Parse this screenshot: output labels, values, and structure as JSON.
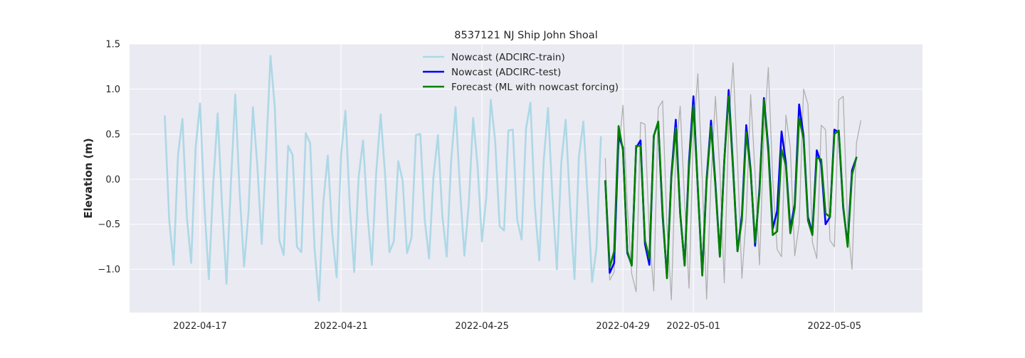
{
  "chart_data": {
    "type": "line",
    "title": "8537121 NJ Ship John Shoal",
    "xlabel": "",
    "ylabel": "Elevation (m)",
    "x_unit": "date (day of April/May 2022)",
    "xlim": [
      "2022-04-15T00:00",
      "2022-05-07T12:00"
    ],
    "ylim": [
      -1.48,
      1.5
    ],
    "yticks": [
      -1.0,
      -0.5,
      0.0,
      0.5,
      1.0,
      1.5
    ],
    "ytick_labels": [
      "−1.0",
      "−0.5",
      "0.0",
      "0.5",
      "1.0",
      "1.5"
    ],
    "xticks": [
      "2022-04-17",
      "2022-04-21",
      "2022-04-25",
      "2022-04-29",
      "2022-05-01",
      "2022-05-05"
    ],
    "xtick_labels": [
      "2022-04-17",
      "2022-04-21",
      "2022-04-25",
      "2022-04-29",
      "2022-05-01",
      "2022-05-05"
    ],
    "grid": true,
    "legend_position": "top-center",
    "background": "#eaeaf2",
    "series": [
      {
        "name": "Nowcast (ADCIRC-train)",
        "color": "#add8e6",
        "x": [
          "2022-04-16T00:00",
          "2022-04-16T03:00",
          "2022-04-16T06:00",
          "2022-04-16T09:00",
          "2022-04-16T12:00",
          "2022-04-16T15:00",
          "2022-04-16T18:00",
          "2022-04-16T21:00",
          "2022-04-17T00:00",
          "2022-04-17T03:00",
          "2022-04-17T06:00",
          "2022-04-17T09:00",
          "2022-04-17T12:00",
          "2022-04-17T15:00",
          "2022-04-17T18:00",
          "2022-04-17T21:00",
          "2022-04-18T00:00",
          "2022-04-18T03:00",
          "2022-04-18T06:00",
          "2022-04-18T09:00",
          "2022-04-18T12:00",
          "2022-04-18T15:00",
          "2022-04-18T18:00",
          "2022-04-18T21:00",
          "2022-04-19T00:00",
          "2022-04-19T03:00",
          "2022-04-19T06:00",
          "2022-04-19T09:00",
          "2022-04-19T12:00",
          "2022-04-19T15:00",
          "2022-04-19T18:00",
          "2022-04-19T21:00",
          "2022-04-20T00:00",
          "2022-04-20T03:00",
          "2022-04-20T06:00",
          "2022-04-20T09:00",
          "2022-04-20T12:00",
          "2022-04-20T15:00",
          "2022-04-20T18:00",
          "2022-04-20T21:00",
          "2022-04-21T00:00",
          "2022-04-21T03:00",
          "2022-04-21T06:00",
          "2022-04-21T09:00",
          "2022-04-21T12:00",
          "2022-04-21T15:00",
          "2022-04-21T18:00",
          "2022-04-21T21:00",
          "2022-04-22T00:00",
          "2022-04-22T03:00",
          "2022-04-22T06:00",
          "2022-04-22T09:00",
          "2022-04-22T12:00",
          "2022-04-22T15:00",
          "2022-04-22T18:00",
          "2022-04-22T21:00",
          "2022-04-23T00:00",
          "2022-04-23T03:00",
          "2022-04-23T06:00",
          "2022-04-23T09:00",
          "2022-04-23T12:00",
          "2022-04-23T15:00",
          "2022-04-23T18:00",
          "2022-04-23T21:00",
          "2022-04-24T00:00",
          "2022-04-24T03:00",
          "2022-04-24T06:00",
          "2022-04-24T09:00",
          "2022-04-24T12:00",
          "2022-04-24T15:00",
          "2022-04-24T18:00",
          "2022-04-24T21:00",
          "2022-04-25T00:00",
          "2022-04-25T03:00",
          "2022-04-25T06:00",
          "2022-04-25T09:00",
          "2022-04-25T12:00",
          "2022-04-25T15:00",
          "2022-04-25T18:00",
          "2022-04-25T21:00",
          "2022-04-26T00:00",
          "2022-04-26T03:00",
          "2022-04-26T06:00",
          "2022-04-26T09:00",
          "2022-04-26T12:00",
          "2022-04-26T15:00",
          "2022-04-26T18:00",
          "2022-04-26T21:00",
          "2022-04-27T00:00",
          "2022-04-27T03:00",
          "2022-04-27T06:00",
          "2022-04-27T09:00",
          "2022-04-27T12:00",
          "2022-04-27T15:00",
          "2022-04-27T18:00",
          "2022-04-27T21:00",
          "2022-04-28T00:00",
          "2022-04-28T03:00",
          "2022-04-28T06:00",
          "2022-04-28T09:00",
          "2022-04-28T12:00",
          "2022-04-28T15:00"
        ],
        "y": [
          0.7,
          -0.45,
          -0.95,
          0.27,
          0.67,
          -0.42,
          -0.93,
          0.35,
          0.84,
          -0.3,
          -1.11,
          -0.05,
          0.73,
          -0.3,
          -1.16,
          -0.06,
          0.94,
          -0.15,
          -0.97,
          -0.37,
          0.8,
          0.15,
          -0.72,
          0.3,
          1.37,
          0.78,
          -0.68,
          -0.84,
          0.37,
          0.27,
          -0.75,
          -0.81,
          0.51,
          0.4,
          -0.77,
          -1.35,
          -0.25,
          0.26,
          -0.59,
          -1.09,
          0.26,
          0.76,
          -0.3,
          -1.03,
          0.02,
          0.43,
          -0.38,
          -0.95,
          0.08,
          0.72,
          0.05,
          -0.81,
          -0.69,
          0.2,
          -0.02,
          -0.82,
          -0.65,
          0.49,
          0.5,
          -0.45,
          -0.88,
          0.03,
          0.49,
          -0.4,
          -0.86,
          0.2,
          0.8,
          -0.1,
          -0.85,
          -0.28,
          0.68,
          0.15,
          -0.69,
          -0.19,
          0.88,
          0.42,
          -0.52,
          -0.57,
          0.54,
          0.55,
          -0.45,
          -0.67,
          0.56,
          0.85,
          -0.3,
          -0.9,
          0.2,
          0.79,
          -0.2,
          -1.0,
          0.18,
          0.66,
          -0.3,
          -1.11,
          0.25,
          0.64,
          -0.2,
          -1.14,
          -0.76,
          0.47,
          null,
          null
        ]
      },
      {
        "name": "Nowcast (ADCIRC-test)",
        "color": "#0000ff",
        "x": [
          "2022-04-28T12:00",
          "2022-04-28T15:00",
          "2022-04-28T18:00",
          "2022-04-28T21:00",
          "2022-04-29T00:00",
          "2022-04-29T03:00",
          "2022-04-29T06:00",
          "2022-04-29T09:00",
          "2022-04-29T12:00",
          "2022-04-29T15:00",
          "2022-04-29T18:00",
          "2022-04-29T21:00",
          "2022-04-30T00:00",
          "2022-04-30T03:00",
          "2022-04-30T06:00",
          "2022-04-30T09:00",
          "2022-04-30T12:00",
          "2022-04-30T15:00",
          "2022-04-30T18:00",
          "2022-04-30T21:00",
          "2022-05-01T00:00",
          "2022-05-01T03:00",
          "2022-05-01T06:00",
          "2022-05-01T09:00",
          "2022-05-01T12:00",
          "2022-05-01T15:00",
          "2022-05-01T18:00",
          "2022-05-01T21:00",
          "2022-05-02T00:00",
          "2022-05-02T03:00",
          "2022-05-02T06:00",
          "2022-05-02T09:00",
          "2022-05-02T12:00",
          "2022-05-02T15:00",
          "2022-05-02T18:00",
          "2022-05-02T21:00",
          "2022-05-03T00:00",
          "2022-05-03T03:00",
          "2022-05-03T06:00",
          "2022-05-03T09:00",
          "2022-05-03T12:00",
          "2022-05-03T15:00",
          "2022-05-03T18:00",
          "2022-05-03T21:00",
          "2022-05-04T00:00",
          "2022-05-04T03:00",
          "2022-05-04T06:00",
          "2022-05-04T09:00",
          "2022-05-04T12:00",
          "2022-05-04T15:00",
          "2022-05-04T18:00",
          "2022-05-04T21:00",
          "2022-05-05T00:00",
          "2022-05-05T03:00",
          "2022-05-05T06:00",
          "2022-05-05T09:00",
          "2022-05-05T12:00",
          "2022-05-05T15:00",
          "2022-05-05T18:00",
          "2022-05-05T21:00"
        ],
        "y": [
          -0.02,
          -1.04,
          -0.93,
          0.48,
          0.35,
          -0.82,
          -0.95,
          0.35,
          0.43,
          -0.72,
          -0.95,
          0.48,
          0.63,
          -0.41,
          -1.08,
          0.05,
          0.66,
          -0.38,
          -0.95,
          0.2,
          0.92,
          -0.11,
          -1.05,
          0.0,
          0.65,
          -0.05,
          -0.85,
          0.2,
          0.99,
          0.13,
          -0.8,
          -0.4,
          0.6,
          0.1,
          -0.74,
          -0.1,
          0.9,
          0.35,
          -0.55,
          -0.35,
          0.53,
          0.18,
          -0.55,
          -0.28,
          0.83,
          0.48,
          -0.42,
          -0.6,
          0.32,
          0.17,
          -0.5,
          -0.42,
          0.55,
          0.52,
          -0.32,
          -0.72,
          0.1,
          0.24,
          null,
          null
        ]
      },
      {
        "name": "Forecast (ML with nowcast forcing)",
        "color": "#008000",
        "x": [
          "2022-04-28T12:00",
          "2022-04-28T15:00",
          "2022-04-28T18:00",
          "2022-04-28T21:00",
          "2022-04-29T00:00",
          "2022-04-29T03:00",
          "2022-04-29T06:00",
          "2022-04-29T09:00",
          "2022-04-29T12:00",
          "2022-04-29T15:00",
          "2022-04-29T18:00",
          "2022-04-29T21:00",
          "2022-04-30T00:00",
          "2022-04-30T03:00",
          "2022-04-30T06:00",
          "2022-04-30T09:00",
          "2022-04-30T12:00",
          "2022-04-30T15:00",
          "2022-04-30T18:00",
          "2022-04-30T21:00",
          "2022-05-01T00:00",
          "2022-05-01T03:00",
          "2022-05-01T06:00",
          "2022-05-01T09:00",
          "2022-05-01T12:00",
          "2022-05-01T15:00",
          "2022-05-01T18:00",
          "2022-05-01T21:00",
          "2022-05-02T00:00",
          "2022-05-02T03:00",
          "2022-05-02T06:00",
          "2022-05-02T09:00",
          "2022-05-02T12:00",
          "2022-05-02T15:00",
          "2022-05-02T18:00",
          "2022-05-02T21:00",
          "2022-05-03T00:00",
          "2022-05-03T03:00",
          "2022-05-03T06:00",
          "2022-05-03T09:00",
          "2022-05-03T12:00",
          "2022-05-03T15:00",
          "2022-05-03T18:00",
          "2022-05-03T21:00",
          "2022-05-04T00:00",
          "2022-05-04T03:00",
          "2022-05-04T06:00",
          "2022-05-04T09:00",
          "2022-05-04T12:00",
          "2022-05-04T15:00",
          "2022-05-04T18:00",
          "2022-05-04T21:00",
          "2022-05-05T00:00",
          "2022-05-05T03:00",
          "2022-05-05T06:00",
          "2022-05-05T09:00",
          "2022-05-05T12:00",
          "2022-05-05T15:00",
          "2022-05-05T18:00",
          "2022-05-05T21:00"
        ],
        "y": [
          -0.02,
          -0.98,
          -0.8,
          0.59,
          0.32,
          -0.8,
          -0.96,
          0.37,
          0.37,
          -0.68,
          -0.88,
          0.48,
          0.64,
          -0.37,
          -1.1,
          0.02,
          0.57,
          -0.38,
          -0.96,
          0.14,
          0.82,
          -0.1,
          -1.07,
          -0.03,
          0.59,
          -0.08,
          -0.86,
          0.2,
          0.92,
          0.1,
          -0.8,
          -0.45,
          0.52,
          0.08,
          -0.7,
          -0.14,
          0.88,
          0.3,
          -0.62,
          -0.58,
          0.33,
          0.15,
          -0.6,
          -0.32,
          0.68,
          0.45,
          -0.46,
          -0.62,
          0.24,
          0.22,
          -0.38,
          -0.42,
          0.5,
          0.54,
          -0.3,
          -0.75,
          0.05,
          0.24,
          null,
          null
        ]
      },
      {
        "color": "#b0b0b0",
        "x": [
          "2022-04-28T12:00",
          "2022-04-28T15:00",
          "2022-04-28T18:00",
          "2022-04-28T21:00",
          "2022-04-29T00:00",
          "2022-04-29T03:00",
          "2022-04-29T06:00",
          "2022-04-29T09:00",
          "2022-04-29T12:00",
          "2022-04-29T15:00",
          "2022-04-29T18:00",
          "2022-04-29T21:00",
          "2022-04-30T00:00",
          "2022-04-30T03:00",
          "2022-04-30T06:00",
          "2022-04-30T09:00",
          "2022-04-30T12:00",
          "2022-04-30T15:00",
          "2022-04-30T18:00",
          "2022-04-30T21:00",
          "2022-05-01T00:00",
          "2022-05-01T03:00",
          "2022-05-01T06:00",
          "2022-05-01T09:00",
          "2022-05-01T12:00",
          "2022-05-01T15:00",
          "2022-05-01T18:00",
          "2022-05-01T21:00",
          "2022-05-02T00:00",
          "2022-05-02T03:00",
          "2022-05-02T06:00",
          "2022-05-02T09:00",
          "2022-05-02T12:00",
          "2022-05-02T15:00",
          "2022-05-02T18:00",
          "2022-05-02T21:00",
          "2022-05-03T00:00",
          "2022-05-03T03:00",
          "2022-05-03T06:00",
          "2022-05-03T09:00",
          "2022-05-03T12:00",
          "2022-05-03T15:00",
          "2022-05-03T18:00",
          "2022-05-03T21:00",
          "2022-05-04T00:00",
          "2022-05-04T03:00",
          "2022-05-04T06:00",
          "2022-05-04T09:00",
          "2022-05-04T12:00",
          "2022-05-04T15:00",
          "2022-05-04T18:00",
          "2022-05-04T21:00",
          "2022-05-05T00:00",
          "2022-05-05T03:00",
          "2022-05-05T06:00",
          "2022-05-05T09:00",
          "2022-05-05T12:00",
          "2022-05-05T15:00",
          "2022-05-05T18:00",
          "2022-05-05T21:00"
        ],
        "y": [
          0.23,
          -1.12,
          -1.03,
          0.3,
          0.82,
          -0.3,
          -1.05,
          -1.25,
          0.63,
          0.61,
          -0.64,
          -1.24,
          0.79,
          0.87,
          -0.52,
          -1.34,
          0.3,
          0.81,
          -0.25,
          -1.21,
          0.5,
          1.17,
          0.0,
          -1.33,
          0.0,
          0.92,
          0.1,
          -1.15,
          0.6,
          1.29,
          0.2,
          -1.1,
          -0.4,
          0.94,
          0.06,
          -0.95,
          0.5,
          1.24,
          0.0,
          -0.78,
          -0.86,
          0.71,
          0.35,
          -0.85,
          -0.5,
          1.0,
          0.83,
          -0.7,
          -0.88,
          0.6,
          0.55,
          -0.68,
          -0.75,
          0.88,
          0.92,
          -0.5,
          -1.0,
          0.4,
          0.65,
          null
        ]
      }
    ]
  }
}
